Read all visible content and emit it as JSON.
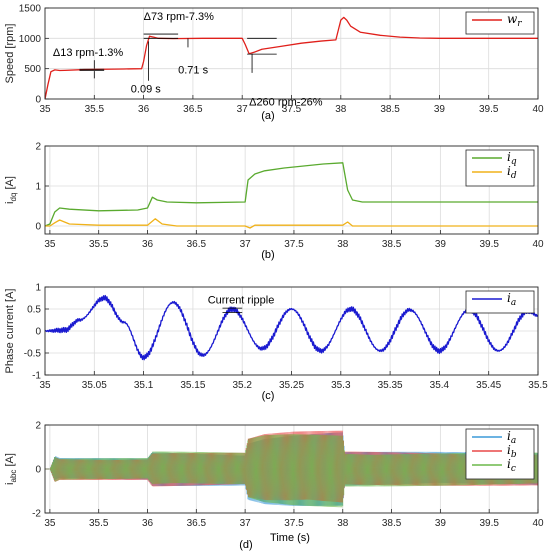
{
  "chart_data": [
    {
      "type": "line",
      "ylabel": "Speed [rpm]",
      "caption": "(a)",
      "xlim": [
        35,
        40
      ],
      "ylim": [
        0,
        1500
      ],
      "xticks": [
        "35",
        "35.5",
        "36",
        "36.5",
        "37",
        "37.5",
        "38",
        "38.5",
        "39",
        "39.5",
        "40"
      ],
      "yticks": [
        "0",
        "500",
        "1000",
        "1500"
      ],
      "grid": true,
      "legend_position": "top-right",
      "series": [
        {
          "name": "w",
          "name_sub": "r",
          "color": "#e0201b",
          "x": [
            35.0,
            35.03,
            35.06,
            35.1,
            35.15,
            35.2,
            35.4,
            35.6,
            35.8,
            35.98,
            36.0,
            36.03,
            36.06,
            36.1,
            36.15,
            36.3,
            36.6,
            36.9,
            37.0,
            37.03,
            37.07,
            37.12,
            37.2,
            37.4,
            37.6,
            37.8,
            37.95,
            38.0,
            38.03,
            38.06,
            38.1,
            38.2,
            38.4,
            38.6,
            38.8,
            39.0,
            39.5,
            40.0
          ],
          "y": [
            0,
            240,
            450,
            480,
            470,
            472,
            485,
            490,
            495,
            500,
            620,
            880,
            1035,
            1020,
            1000,
            995,
            1000,
            1000,
            1000,
            900,
            745,
            770,
            820,
            870,
            920,
            955,
            975,
            1300,
            1345,
            1300,
            1200,
            1100,
            1050,
            1020,
            1005,
            1000,
            1000,
            1000
          ]
        }
      ],
      "annotations": [
        "Δ13 rpm-1.3%",
        "Δ73 rpm-7.3%",
        "0.71 s",
        "0.09 s",
        "Δ260 rpm-26%"
      ]
    },
    {
      "type": "line",
      "ylabel": "i",
      "ylabel_sub": "dq",
      "ylabel_unit": " [A]",
      "caption": "(b)",
      "xlim": [
        34.95,
        40
      ],
      "ylim": [
        -0.2,
        2
      ],
      "xticks": [
        "35",
        "35.5",
        "36",
        "36.5",
        "37",
        "37.5",
        "38",
        "38.5",
        "39",
        "39.5",
        "40"
      ],
      "yticks": [
        "0",
        "1",
        "2"
      ],
      "grid": true,
      "legend_position": "top-right",
      "series": [
        {
          "name": "i",
          "name_sub": "q",
          "color": "#5aaa2f",
          "x": [
            34.95,
            35.0,
            35.05,
            35.1,
            35.2,
            35.5,
            35.9,
            36.0,
            36.05,
            36.1,
            36.2,
            36.5,
            37.0,
            37.03,
            37.1,
            37.2,
            37.4,
            37.6,
            37.8,
            38.0,
            38.05,
            38.1,
            38.2,
            40.0
          ],
          "x_note": "",
          "y": [
            0.0,
            0.05,
            0.35,
            0.45,
            0.42,
            0.38,
            0.4,
            0.45,
            0.72,
            0.65,
            0.6,
            0.58,
            0.6,
            1.15,
            1.3,
            1.38,
            1.45,
            1.5,
            1.55,
            1.58,
            0.9,
            0.65,
            0.6,
            0.6
          ]
        },
        {
          "name": "i",
          "name_sub": "d",
          "color": "#f0b21a",
          "x": [
            34.95,
            35.0,
            35.05,
            35.1,
            35.2,
            35.5,
            36.0,
            36.08,
            36.15,
            36.3,
            37.0,
            37.05,
            37.1,
            37.5,
            38.0,
            38.05,
            38.1,
            40.0
          ],
          "y": [
            0.0,
            0.0,
            0.08,
            0.15,
            0.05,
            0.02,
            0.02,
            0.18,
            0.05,
            0.0,
            0.0,
            -0.05,
            0.02,
            0.02,
            0.02,
            0.1,
            0.0,
            0.0
          ]
        }
      ]
    },
    {
      "type": "line",
      "ylabel": "Phase current [A]",
      "caption": "(c)",
      "xlim": [
        35,
        35.5
      ],
      "ylim": [
        -1,
        1
      ],
      "xticks": [
        "35",
        "35.05",
        "35.1",
        "35.15",
        "35.2",
        "35.25",
        "35.3",
        "35.35",
        "35.4",
        "35.45",
        "35.5"
      ],
      "yticks": [
        "-1",
        "-0.5",
        "0",
        "0.5",
        "1"
      ],
      "grid": true,
      "legend_position": "top-right",
      "series": [
        {
          "name": "i",
          "name_sub": "a",
          "color": "#1a1ad0",
          "x": [
            35.0,
            35.02,
            35.035,
            35.06,
            35.08,
            35.1,
            35.13,
            35.16,
            35.19,
            35.22,
            35.25,
            35.28,
            35.31,
            35.34,
            35.37,
            35.4,
            35.43,
            35.46,
            35.49,
            35.5
          ],
          "y": [
            0.0,
            0.02,
            0.25,
            0.75,
            0.2,
            -0.6,
            0.65,
            -0.55,
            0.5,
            -0.4,
            0.5,
            -0.45,
            0.5,
            -0.45,
            0.48,
            -0.45,
            0.48,
            -0.45,
            0.45,
            0.35
          ]
        }
      ],
      "annotations": [
        "Current ripple"
      ]
    },
    {
      "type": "line",
      "ylabel": "i",
      "ylabel_sub": "abc",
      "ylabel_unit": " [A]",
      "caption": "(d)",
      "xlabel": "Time (s)",
      "xlim": [
        34.95,
        40
      ],
      "ylim": [
        -2,
        2
      ],
      "xticks": [
        "35",
        "35.5",
        "36",
        "36.5",
        "37",
        "37.5",
        "38",
        "38.5",
        "39",
        "39.5",
        "40"
      ],
      "yticks": [
        "-2",
        "0",
        "2"
      ],
      "grid": true,
      "legend_position": "top-right",
      "series": [
        {
          "name": "i",
          "name_sub": "a",
          "color": "#3b9ad8"
        },
        {
          "name": "i",
          "name_sub": "b",
          "color": "#e84848"
        },
        {
          "name": "i",
          "name_sub": "c",
          "color": "#6cb84a"
        }
      ],
      "envelope": {
        "x": [
          34.95,
          35.0,
          35.05,
          35.1,
          36.0,
          36.05,
          37.0,
          37.03,
          37.2,
          37.5,
          38.0,
          38.02,
          40.0
        ],
        "amplitude": [
          0,
          0,
          0.6,
          0.5,
          0.5,
          0.8,
          0.75,
          1.4,
          1.6,
          1.7,
          1.75,
          0.8,
          0.75
        ]
      }
    }
  ]
}
